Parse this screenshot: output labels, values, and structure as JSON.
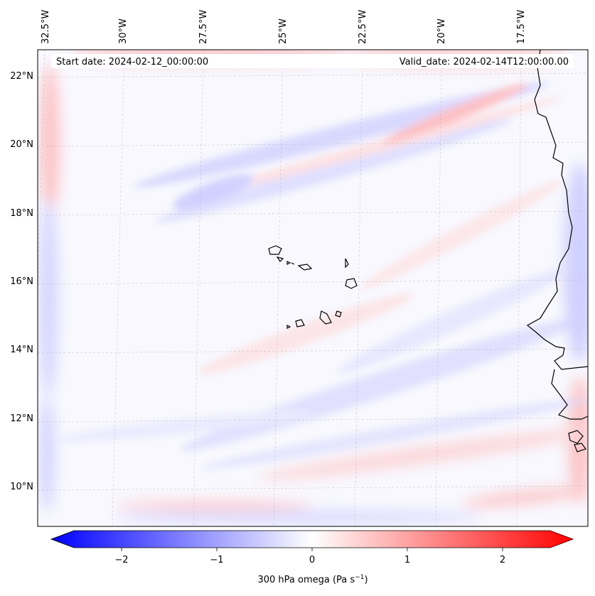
{
  "map": {
    "start_date": "Start date: 2024-02-12_00:00:00",
    "valid_date": "Valid_date: 2024-02-14T12:00:00.00",
    "lon_labels": [
      "32.5°W",
      "30°W",
      "27.5°W",
      "25°W",
      "22.5°W",
      "20°W",
      "17.5°W"
    ],
    "lat_labels": [
      "22°N",
      "20°N",
      "18°N",
      "16°N",
      "14°N",
      "12°N",
      "10°N"
    ],
    "extent": {
      "lon_min": -32.6,
      "lon_max": -15.4,
      "lat_min": 8.9,
      "lat_max": 22.7
    }
  },
  "colorbar": {
    "label": "300 hPa omega (Pa s",
    "label_sup": "−1",
    "label_end": ")",
    "min": -2.6,
    "max": 2.6,
    "ticks": [
      {
        "value": -2,
        "label": "−2"
      },
      {
        "value": -1,
        "label": "−1"
      },
      {
        "value": 0,
        "label": "0"
      },
      {
        "value": 1,
        "label": "1"
      },
      {
        "value": 2,
        "label": "2"
      }
    ]
  },
  "colors": {
    "low": "#0000ff",
    "mid": "#ffffff",
    "high": "#ff0000",
    "coast": "#000000"
  }
}
